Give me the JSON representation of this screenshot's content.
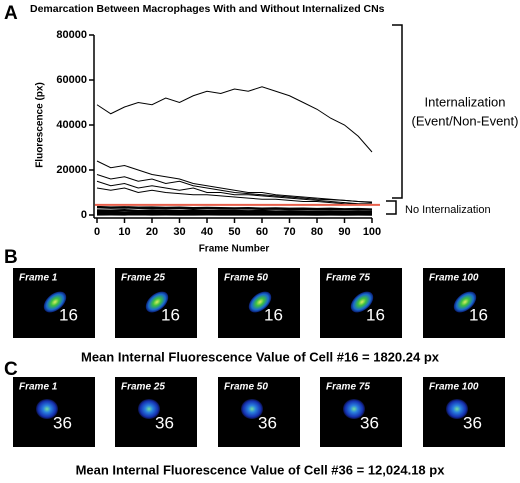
{
  "panel_labels": [
    "A",
    "B",
    "C"
  ],
  "chart_data": {
    "type": "line",
    "title": "Demarcation Between Macrophages With and Without Internalized CNs",
    "x_label": "Frame Number",
    "y_label": "Fluorescence (px)",
    "x": [
      0,
      5,
      10,
      15,
      20,
      25,
      30,
      35,
      40,
      45,
      50,
      55,
      60,
      65,
      70,
      75,
      80,
      85,
      90,
      95,
      100
    ],
    "series": [
      {
        "color": "#000000",
        "values": [
          49000,
          45000,
          48000,
          50000,
          49000,
          52000,
          50000,
          53000,
          55000,
          54000,
          56000,
          55000,
          57000,
          55000,
          53000,
          50000,
          47000,
          43000,
          40000,
          35000,
          28000
        ]
      },
      {
        "color": "#000000",
        "values": [
          24000,
          21000,
          22000,
          20000,
          18000,
          17000,
          16000,
          14000,
          13000,
          12000,
          11000,
          10000,
          10000,
          9000,
          8500,
          8000,
          7500,
          7000,
          6500,
          6000,
          5500
        ]
      },
      {
        "color": "#000000",
        "values": [
          18000,
          16000,
          17000,
          15000,
          16000,
          14000,
          15000,
          13000,
          12000,
          11000,
          10000,
          9500,
          9000,
          8500,
          8000,
          7500,
          7000,
          6800,
          6500,
          6000,
          5800
        ]
      },
      {
        "color": "#000000",
        "values": [
          15000,
          13000,
          14000,
          12000,
          13000,
          12000,
          11000,
          12000,
          10000,
          10000,
          9000,
          9000,
          8500,
          8000,
          7500,
          7000,
          6500,
          6000,
          5500,
          5000,
          5000
        ]
      },
      {
        "color": "#000000",
        "values": [
          12000,
          11000,
          12000,
          10000,
          11000,
          10000,
          9500,
          9000,
          9000,
          8500,
          8000,
          7500,
          7000,
          7000,
          6500,
          6000,
          6000,
          5500,
          5000,
          4800,
          4500
        ]
      },
      {
        "color": "#000000",
        "values": [
          3500,
          3300,
          3400,
          3200,
          3300,
          3100,
          3200,
          3000,
          3100,
          3000,
          2900,
          3000,
          2800,
          2900,
          2700,
          2800,
          2600,
          2700,
          2500,
          2600,
          2400
        ]
      },
      {
        "color": "#000000",
        "values": [
          2000,
          1900,
          2100,
          1800,
          2000,
          1900,
          1800,
          1900,
          1700,
          1800,
          1700,
          1600,
          1700,
          1500,
          1600,
          1500,
          1400,
          1500,
          1300,
          1400,
          1300
        ]
      },
      {
        "color": "#000000",
        "values": [
          1000,
          1100,
          900,
          1000,
          1100,
          900,
          1000,
          900,
          1000,
          800,
          900,
          800,
          900,
          800,
          700,
          800,
          700,
          800,
          700,
          600,
          700
        ]
      },
      {
        "color": "#000000",
        "values": [
          300,
          350,
          300,
          400,
          300,
          350,
          300,
          300,
          350,
          300,
          300,
          250,
          300,
          250,
          300,
          250,
          200,
          250,
          200,
          250,
          200
        ]
      }
    ],
    "threshold": 4500,
    "threshold_color": "#e8604c",
    "xlim": [
      0,
      100
    ],
    "xticks": [
      0,
      10,
      20,
      30,
      40,
      50,
      60,
      70,
      80,
      90,
      100
    ],
    "ylim": [
      0,
      80000
    ],
    "yticks": [
      0,
      20000,
      40000,
      60000,
      80000
    ],
    "annotations": [
      "Internalization",
      "(Event/Non-Event)",
      "No Internalization"
    ]
  },
  "rows": [
    {
      "frames": [
        "Frame 1",
        "Frame 25",
        "Frame 50",
        "Frame 75",
        "Frame 100"
      ],
      "cell": "16",
      "caption": "Mean Internal Fluorescence Value of Cell #16 = 1820.24 px"
    },
    {
      "frames": [
        "Frame 1",
        "Frame 25",
        "Frame 50",
        "Frame 75",
        "Frame 100"
      ],
      "cell": "36",
      "caption": "Mean Internal Fluorescence Value of Cell #36 = 12,024.18 px"
    }
  ]
}
